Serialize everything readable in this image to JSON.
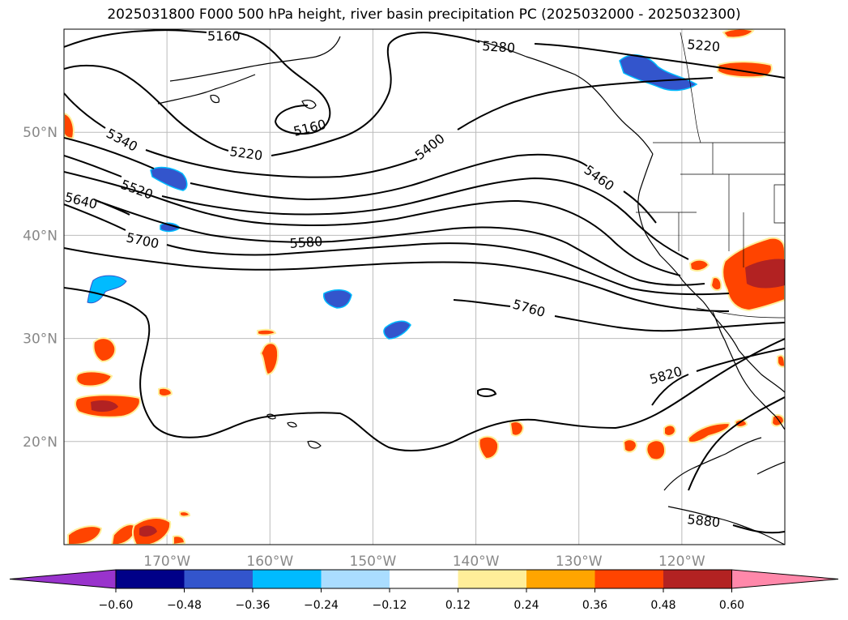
{
  "title": "2025031800 F000 500 hPa height, river basin precipitation PC (2025032000 - 2025032300)",
  "map": {
    "lon_range": [
      -180,
      -110
    ],
    "lat_range": [
      10,
      60
    ],
    "gridlines": true,
    "lat_labels": [
      "50°N",
      "40°N",
      "30°N",
      "20°N"
    ],
    "lat_values": [
      50,
      40,
      30,
      20
    ],
    "lon_labels": [
      "170°W",
      "160°W",
      "150°W",
      "140°W",
      "130°W",
      "120°W"
    ],
    "lon_values": [
      -170,
      -160,
      -150,
      -140,
      -130,
      -120
    ],
    "contour_labels": [
      "5160",
      "5160",
      "5220",
      "5220",
      "5280",
      "5340",
      "5400",
      "5460",
      "5520",
      "5580",
      "5640",
      "5700",
      "5760",
      "5820",
      "5880"
    ]
  },
  "colorbar": {
    "ticks": [
      "−0.60",
      "−0.48",
      "−0.36",
      "−0.24",
      "−0.12",
      "0.12",
      "0.24",
      "0.36",
      "0.48",
      "0.60"
    ],
    "colors": [
      "#9933cc",
      "#000088",
      "#3355cc",
      "#00bbff",
      "#aaddff",
      "#ffffff",
      "#ffee99",
      "#ffa500",
      "#ff4400",
      "#b22222",
      "#ff88aa"
    ],
    "extend": "both"
  }
}
